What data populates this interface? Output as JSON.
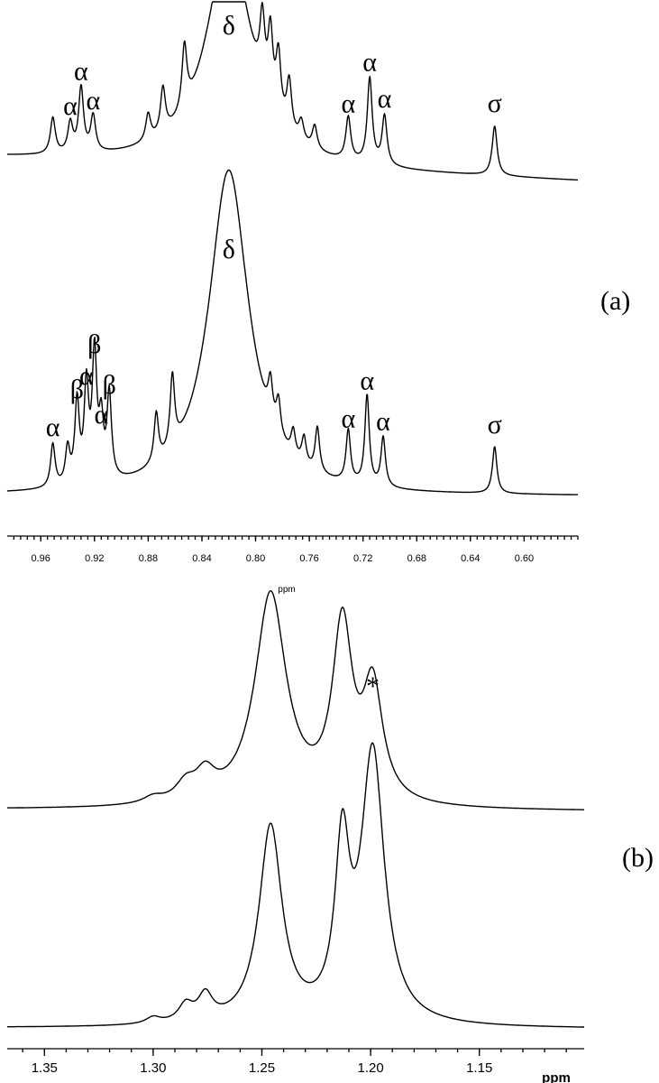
{
  "chart_data": [
    {
      "type": "line",
      "panel_label": "(a)",
      "xlabel": "ppm",
      "x_reversed": true,
      "xlim": [
        0.56,
        0.985
      ],
      "x_ticks": [
        "0.96",
        "0.92",
        "0.88",
        "0.84",
        "0.80",
        "0.76",
        "0.72",
        "0.68",
        "0.64",
        "0.60"
      ],
      "series": [
        {
          "peaks": [
            {
              "ppm": 0.951,
              "height": 0.4
            },
            {
              "ppm": 0.938,
              "height": 0.33,
              "label": "α"
            },
            {
              "ppm": 0.93,
              "height": 0.72,
              "label": "α"
            },
            {
              "ppm": 0.921,
              "height": 0.4,
              "label": "α"
            },
            {
              "ppm": 0.88,
              "height": 0.3
            },
            {
              "ppm": 0.869,
              "height": 0.5
            },
            {
              "ppm": 0.853,
              "height": 0.7
            },
            {
              "ppm": 0.82,
              "height": 2.5,
              "label": "δ"
            },
            {
              "ppm": 0.795,
              "height": 0.75
            },
            {
              "ppm": 0.789,
              "height": 0.78
            },
            {
              "ppm": 0.783,
              "height": 0.68
            },
            {
              "ppm": 0.775,
              "height": 0.55
            },
            {
              "ppm": 0.766,
              "height": 0.22
            },
            {
              "ppm": 0.756,
              "height": 0.26
            },
            {
              "ppm": 0.731,
              "height": 0.48,
              "label": "α"
            },
            {
              "ppm": 0.715,
              "height": 0.95,
              "label": "α"
            },
            {
              "ppm": 0.704,
              "height": 0.55,
              "label": "α"
            },
            {
              "ppm": 0.622,
              "height": 0.55,
              "label": "σ"
            }
          ]
        },
        {
          "peaks": [
            {
              "ppm": 0.951,
              "height": 0.48,
              "label": "α"
            },
            {
              "ppm": 0.94,
              "height": 0.4
            },
            {
              "ppm": 0.933,
              "height": 0.9,
              "label": "β"
            },
            {
              "ppm": 0.926,
              "height": 1.05,
              "label": "α"
            },
            {
              "ppm": 0.92,
              "height": 1.4,
              "label": "β"
            },
            {
              "ppm": 0.915,
              "height": 0.62,
              "label": "α"
            },
            {
              "ppm": 0.909,
              "height": 0.95,
              "label": "β"
            },
            {
              "ppm": 0.874,
              "height": 0.55
            },
            {
              "ppm": 0.862,
              "height": 0.8
            },
            {
              "ppm": 0.82,
              "height": 3.6,
              "label": "δ"
            },
            {
              "ppm": 0.789,
              "height": 0.42
            },
            {
              "ppm": 0.783,
              "height": 0.38
            },
            {
              "ppm": 0.772,
              "height": 0.28
            },
            {
              "ppm": 0.764,
              "height": 0.3
            },
            {
              "ppm": 0.754,
              "height": 0.5
            },
            {
              "ppm": 0.731,
              "height": 0.58,
              "label": "α"
            },
            {
              "ppm": 0.717,
              "height": 1.0,
              "label": "α"
            },
            {
              "ppm": 0.705,
              "height": 0.55,
              "label": "α"
            },
            {
              "ppm": 0.622,
              "height": 0.52,
              "label": "σ"
            }
          ]
        }
      ]
    },
    {
      "type": "line",
      "panel_label": "(b)",
      "xlabel": "ppm",
      "x_reversed": true,
      "xlim": [
        1.1018,
        1.3671
      ],
      "x_ticks": [
        "1.35",
        "1.30",
        "1.25",
        "1.20",
        "1.15"
      ],
      "series": [
        {
          "annotation": "*",
          "annotation_ppm": 1.199,
          "peaks": [
            {
              "ppm": 1.246,
              "height": 1.0
            },
            {
              "ppm": 1.213,
              "height": 0.82
            },
            {
              "ppm": 1.199,
              "height": 0.53
            },
            {
              "ppm": 1.276,
              "height": 0.12
            },
            {
              "ppm": 1.285,
              "height": 0.08
            },
            {
              "ppm": 1.3,
              "height": 0.03
            }
          ]
        },
        {
          "peaks": [
            {
              "ppm": 1.246,
              "height": 0.93
            },
            {
              "ppm": 1.213,
              "height": 0.78
            },
            {
              "ppm": 1.199,
              "height": 1.27
            },
            {
              "ppm": 1.276,
              "height": 0.12
            },
            {
              "ppm": 1.285,
              "height": 0.08
            },
            {
              "ppm": 1.3,
              "height": 0.03
            }
          ]
        }
      ]
    }
  ]
}
